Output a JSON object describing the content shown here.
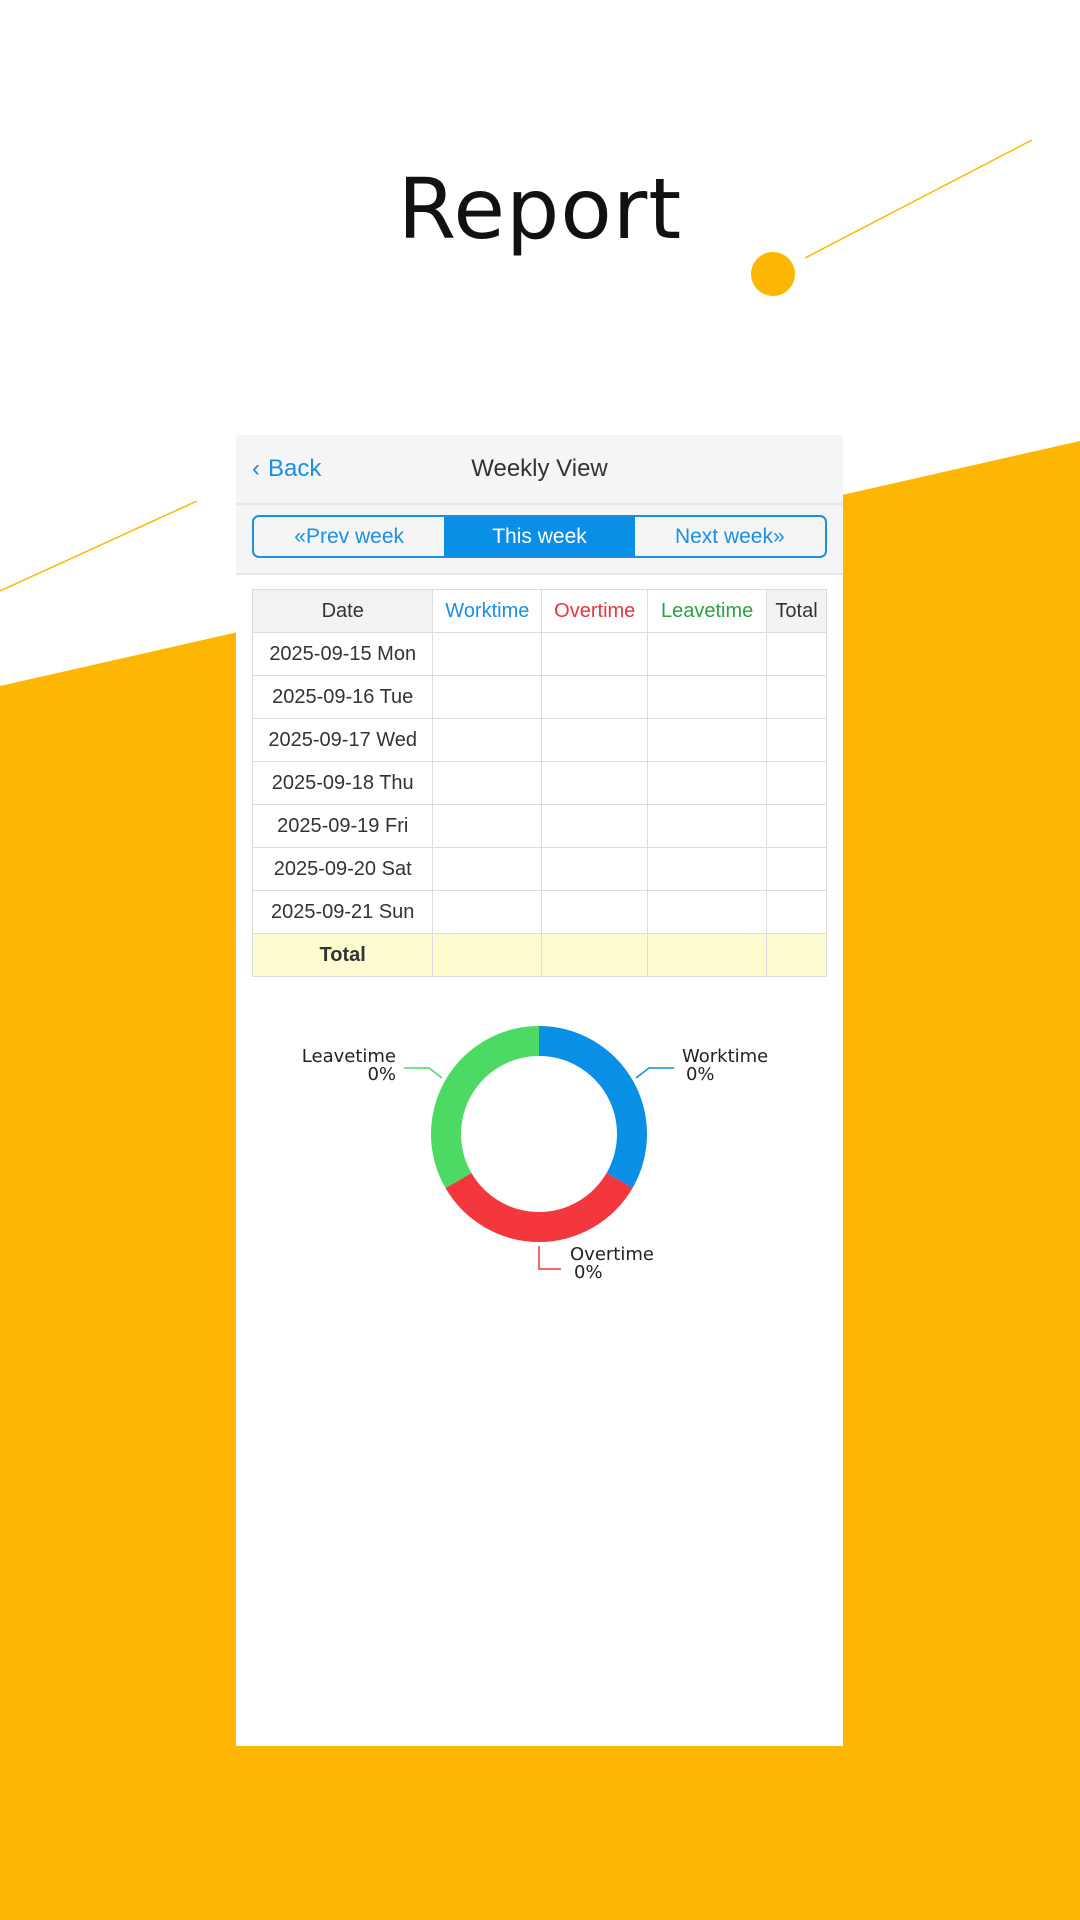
{
  "page_title": "Report",
  "colors": {
    "accent_yellow": "#FDB702",
    "primary_blue": "#0A8FE6",
    "work": "#0A8FE6",
    "over": "#F4363D",
    "leave": "#4CD964"
  },
  "header": {
    "back_label": "Back",
    "title": "Weekly View"
  },
  "week_nav": {
    "prev": "«Prev week",
    "current": "This week",
    "next": "Next week»"
  },
  "table": {
    "columns": [
      "Date",
      "Worktime",
      "Overtime",
      "Leavetime",
      "Total"
    ],
    "rows": [
      {
        "date": "2025-09-15 Mon"
      },
      {
        "date": "2025-09-16 Tue"
      },
      {
        "date": "2025-09-17 Wed"
      },
      {
        "date": "2025-09-18 Thu"
      },
      {
        "date": "2025-09-19 Fri"
      },
      {
        "date": "2025-09-20 Sat"
      },
      {
        "date": "2025-09-21 Sun"
      }
    ],
    "total_label": "Total"
  },
  "chart_data": {
    "type": "pie",
    "donut": true,
    "slices": [
      {
        "name": "Worktime",
        "percent_label": "0%",
        "value": 0,
        "color": "#0A8FE6"
      },
      {
        "name": "Overtime",
        "percent_label": "0%",
        "value": 0,
        "color": "#F4363D"
      },
      {
        "name": "Leavetime",
        "percent_label": "0%",
        "value": 0,
        "color": "#4CD964"
      }
    ]
  }
}
